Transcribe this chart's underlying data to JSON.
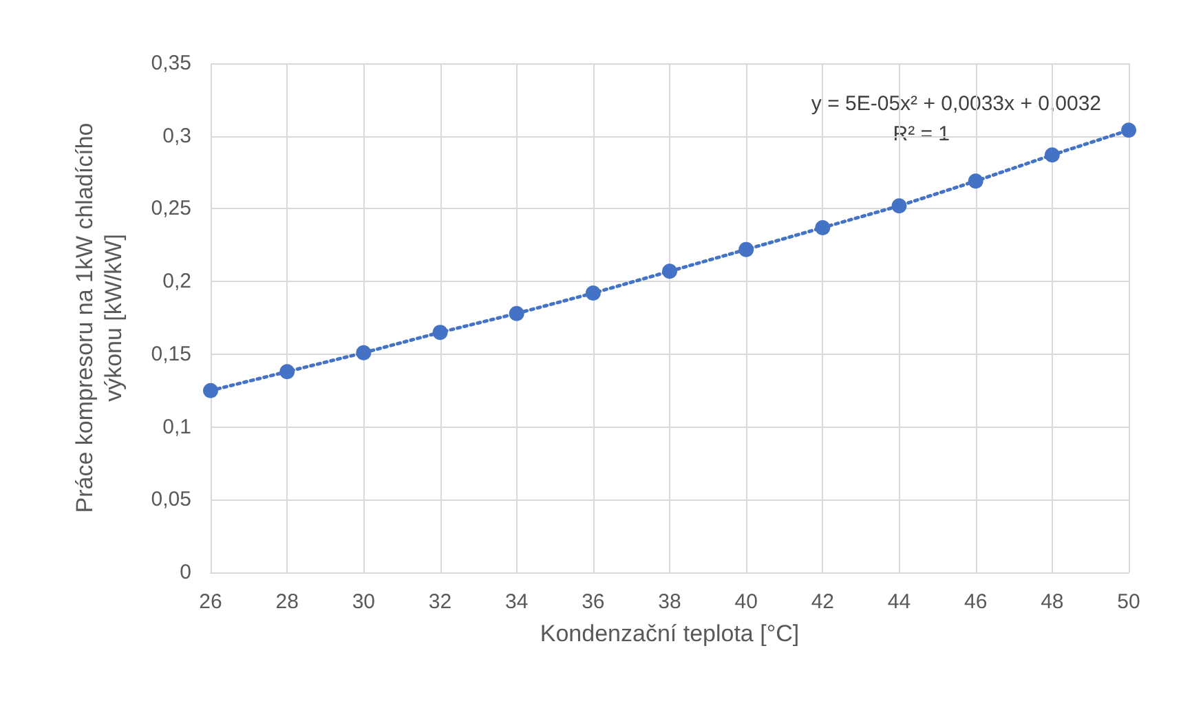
{
  "chart_data": {
    "type": "line",
    "xlabel": "Kondenzační teplota [°C]",
    "ylabel": "Práce kompresoru na 1kW chladícího výkonu [kW/kW]",
    "x": [
      26,
      28,
      30,
      32,
      34,
      36,
      38,
      40,
      42,
      44,
      46,
      48,
      50
    ],
    "series": [
      {
        "color": "#4472c4",
        "values": [
          0.125,
          0.138,
          0.151,
          0.165,
          0.178,
          0.192,
          0.207,
          0.222,
          0.237,
          0.252,
          0.269,
          0.287,
          0.304
        ]
      }
    ],
    "xlim": [
      26,
      50
    ],
    "xticks": [
      26,
      28,
      30,
      32,
      34,
      36,
      38,
      40,
      42,
      44,
      46,
      48,
      50
    ],
    "ylim": [
      0,
      0.35
    ],
    "yticks": [
      0,
      {
        "value": 0.05,
        "label": "0,05"
      },
      {
        "value": 0.1,
        "label": "0,1"
      },
      {
        "value": 0.15,
        "label": "0,15"
      },
      {
        "value": 0.2,
        "label": "0,2"
      },
      {
        "value": 0.25,
        "label": "0,25"
      },
      {
        "value": 0.3,
        "label": "0,3"
      },
      {
        "value": 0.35,
        "label": "0,35"
      }
    ],
    "grid": true,
    "marker": "circle",
    "line_style": "dotted",
    "annotations": [
      "y = 5E-05x² + 0,0033x + 0,0032",
      "R² = 1"
    ]
  }
}
